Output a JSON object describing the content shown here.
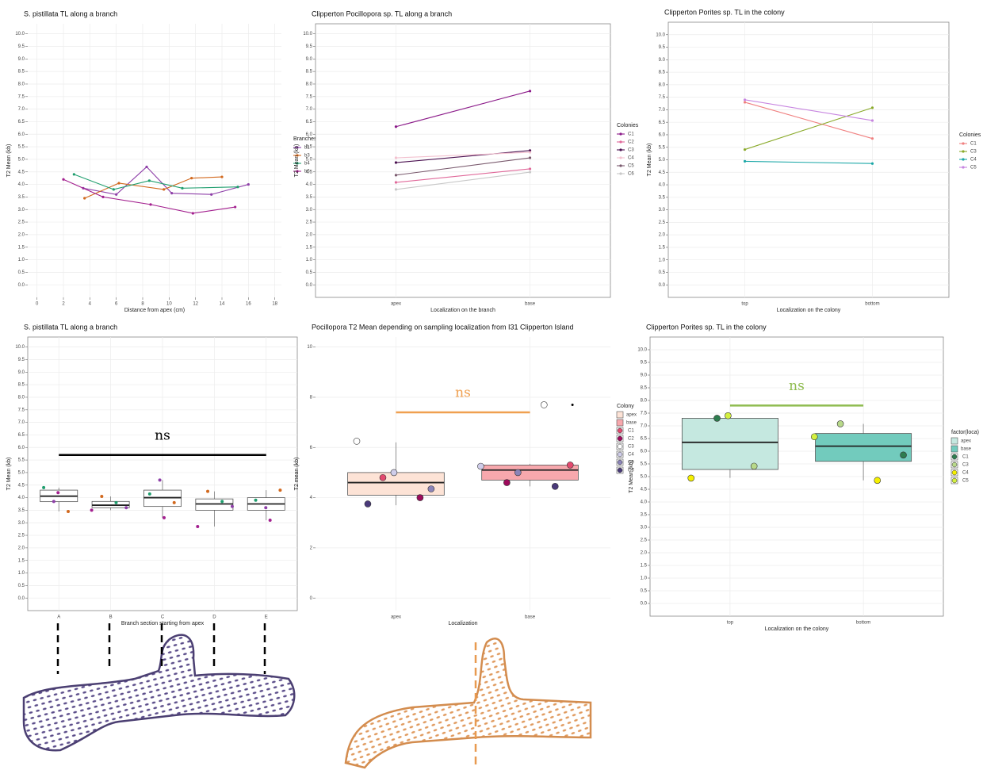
{
  "chart_data": [
    {
      "type": "line",
      "title": "S. pistillata TL along a branch",
      "x_label": "Distance from apex (cm)",
      "y_label": "T2 Mean (kb)",
      "legend_title": "Branches",
      "xlim": [
        -0.7,
        18.5
      ],
      "xticks": [
        0,
        2,
        4,
        6,
        8,
        10,
        12,
        14,
        16,
        18
      ],
      "ylim": [
        -0.5,
        10.4
      ],
      "yticks": [
        {
          "value": 0,
          "label": "0.0"
        },
        0.5,
        {
          "value": 1,
          "label": "1.0"
        },
        1.5,
        {
          "value": 2,
          "label": "2.0"
        },
        2.5,
        {
          "value": 3,
          "label": "3.0"
        },
        3.5,
        {
          "value": 4,
          "label": "4.0"
        },
        4.5,
        {
          "value": 5,
          "label": "5.0"
        },
        5.5,
        {
          "value": 6,
          "label": "6.0"
        },
        6.5,
        {
          "value": 7,
          "label": "7.0"
        },
        7.5,
        {
          "value": 8,
          "label": "8.0"
        },
        8.5,
        {
          "value": 9,
          "label": "9.0"
        },
        9.5,
        {
          "value": 10,
          "label": "10.0"
        }
      ],
      "grid": true,
      "series": [
        {
          "name": "b1",
          "color": "#8e3fa8",
          "x": [
            3.5,
            6,
            8.3,
            10.2,
            13.2,
            16
          ],
          "values": [
            3.85,
            3.6,
            4.7,
            3.65,
            3.6,
            4.0
          ]
        },
        {
          "name": "b3",
          "color": "#d2691e",
          "x": [
            3.6,
            6.2,
            9.6,
            11.7,
            14
          ],
          "values": [
            3.45,
            4.05,
            3.8,
            4.25,
            4.3
          ]
        },
        {
          "name": "b4",
          "color": "#1f9e6e",
          "x": [
            2.8,
            5.8,
            8.5,
            11,
            15.2
          ],
          "values": [
            4.4,
            3.8,
            4.15,
            3.85,
            3.9
          ]
        },
        {
          "name": "b6",
          "color": "#a3208f",
          "x": [
            2,
            5,
            8.6,
            11.8,
            15
          ],
          "values": [
            4.2,
            3.5,
            3.2,
            2.85,
            3.1
          ]
        }
      ]
    },
    {
      "type": "line",
      "title": "Clipperton Pocillopora sp. TL along a branch",
      "x_label": "Localization on the branch",
      "y_label": "T2 Mean (kb)",
      "legend_title": "Colonies",
      "categories": [
        "apex",
        "base"
      ],
      "ylim": [
        -0.5,
        10.4
      ],
      "yticks": [
        {
          "value": 0,
          "label": "0.0"
        },
        0.5,
        {
          "value": 1,
          "label": "1.0"
        },
        1.5,
        {
          "value": 2,
          "label": "2.0"
        },
        2.5,
        {
          "value": 3,
          "label": "3.0"
        },
        3.5,
        {
          "value": 4,
          "label": "4.0"
        },
        4.5,
        {
          "value": 5,
          "label": "5.0"
        },
        5.5,
        {
          "value": 6,
          "label": "6.0"
        },
        6.5,
        {
          "value": 7,
          "label": "7.0"
        },
        7.5,
        {
          "value": 8,
          "label": "8.0"
        },
        8.5,
        {
          "value": 9,
          "label": "9.0"
        },
        9.5,
        {
          "value": 10,
          "label": "10.0"
        }
      ],
      "grid": true,
      "series": [
        {
          "name": "C1",
          "color": "#8b1a89",
          "values": [
            6.3,
            7.72
          ]
        },
        {
          "name": "C2",
          "color": "#e0699a",
          "values": [
            4.08,
            4.62
          ]
        },
        {
          "name": "C3",
          "color": "#4a1050",
          "values": [
            4.87,
            5.35
          ]
        },
        {
          "name": "C4",
          "color": "#f3c1cf",
          "values": [
            5.06,
            5.28
          ]
        },
        {
          "name": "C5",
          "color": "#7a5a6e",
          "values": [
            4.37,
            5.06
          ]
        },
        {
          "name": "C6",
          "color": "#c8c8c8",
          "values": [
            3.8,
            4.49
          ]
        }
      ]
    },
    {
      "type": "line",
      "title": "Clipperton Porites sp. TL in the colony",
      "x_label": "Localization on the colony",
      "y_label": "T2 Mean (kb)",
      "legend_title": "Colonies",
      "categories": [
        "top",
        "bottom"
      ],
      "ylim": [
        -0.5,
        10.5
      ],
      "yticks": [
        {
          "value": 0,
          "label": "0.0"
        },
        0.5,
        {
          "value": 1,
          "label": "1.0"
        },
        1.5,
        {
          "value": 2,
          "label": "2.0"
        },
        2.5,
        {
          "value": 3,
          "label": "3.0"
        },
        3.5,
        {
          "value": 4,
          "label": "4.0"
        },
        4.5,
        {
          "value": 5,
          "label": "5.0"
        },
        5.5,
        {
          "value": 6,
          "label": "6.0"
        },
        6.5,
        {
          "value": 7,
          "label": "7.0"
        },
        7.5,
        {
          "value": 8,
          "label": "8.0"
        },
        8.5,
        {
          "value": 9,
          "label": "9.0"
        },
        9.5,
        {
          "value": 10,
          "label": "10.0"
        }
      ],
      "grid": true,
      "series": [
        {
          "name": "C1",
          "color": "#f08080",
          "values": [
            7.3,
            5.85
          ]
        },
        {
          "name": "C3",
          "color": "#8aaa2a",
          "values": [
            5.41,
            7.08
          ]
        },
        {
          "name": "C4",
          "color": "#1aa7a7",
          "values": [
            4.94,
            4.85
          ]
        },
        {
          "name": "C5",
          "color": "#c785e0",
          "values": [
            7.4,
            6.57
          ]
        }
      ]
    },
    {
      "type": "box",
      "title": "S. pistillata TL along a branch",
      "x_label": "Branch section starting from apex",
      "y_label": "T2 Mean (kb)",
      "categories": [
        "A",
        "B",
        "C",
        "D",
        "E"
      ],
      "ylim": [
        -0.5,
        10.4
      ],
      "yticks": [
        {
          "value": 0,
          "label": "0.0"
        },
        0.5,
        {
          "value": 1,
          "label": "1.0"
        },
        1.5,
        {
          "value": 2,
          "label": "2.0"
        },
        2.5,
        {
          "value": 3,
          "label": "3.0"
        },
        3.5,
        {
          "value": 4,
          "label": "4.0"
        },
        4.5,
        {
          "value": 5,
          "label": "5.0"
        },
        5.5,
        {
          "value": 6,
          "label": "6.0"
        },
        6.5,
        {
          "value": 7,
          "label": "7.0"
        },
        7.5,
        {
          "value": 8,
          "label": "8.0"
        },
        8.5,
        {
          "value": 9,
          "label": "9.0"
        },
        9.5,
        {
          "value": 10,
          "label": "10.0"
        }
      ],
      "grid": true,
      "boxes": [
        {
          "color": "#ffffff",
          "low": 3.45,
          "q1": 3.84,
          "median": 4.06,
          "q3": 4.3,
          "high": 4.4
        },
        {
          "color": "#ffffff",
          "low": 3.5,
          "q1": 3.6,
          "median": 3.7,
          "q3": 3.85,
          "high": 4.05
        },
        {
          "color": "#ffffff",
          "low": 3.2,
          "q1": 3.65,
          "median": 4.0,
          "q3": 4.3,
          "high": 4.7
        },
        {
          "color": "#ffffff",
          "low": 2.85,
          "q1": 3.5,
          "median": 3.75,
          "q3": 3.95,
          "high": 4.25
        },
        {
          "color": "#ffffff",
          "low": 3.1,
          "q1": 3.5,
          "median": 3.75,
          "q3": 4.0,
          "high": 4.3
        }
      ],
      "series": [
        {
          "color": "#8e3fa8",
          "values": [
            3.85,
            3.6,
            4.7,
            3.65,
            3.6
          ]
        },
        {
          "color": "#d2691e",
          "values": [
            3.45,
            4.05,
            3.8,
            4.25,
            4.3
          ]
        },
        {
          "color": "#1f9e6e",
          "values": [
            4.4,
            3.8,
            4.15,
            3.85,
            3.9
          ]
        },
        {
          "color": "#a3208f",
          "values": [
            4.2,
            3.5,
            3.2,
            2.85,
            3.1
          ]
        }
      ],
      "annotation": {
        "text": "ns",
        "y": 5.7,
        "color": "#000000"
      }
    },
    {
      "type": "box",
      "title": "Pocillopora T2 Mean depending on sampling localization from I31 Clipperton Island",
      "x_label": "Localization",
      "y_label": "T2 mean (kb)",
      "legend_title": "Colony",
      "categories": [
        "apex",
        "base"
      ],
      "ylim": [
        -0.5,
        10.4
      ],
      "yticks": [
        0,
        2,
        4,
        6,
        8,
        10
      ],
      "grid": true,
      "boxes": [
        {
          "name": "apex",
          "color": "#fde3d6",
          "low": 3.7,
          "q1": 4.1,
          "median": 4.6,
          "q3": 5.0,
          "high": 6.2
        },
        {
          "name": "base",
          "color": "#f7a8ad",
          "low": 4.45,
          "q1": 4.7,
          "median": 5.1,
          "q3": 5.3,
          "high": 5.35,
          "outliers": [
            7.7
          ]
        }
      ],
      "series": [
        {
          "name": "C1",
          "color": "#e34a6f",
          "values": [
            4.8,
            5.3
          ]
        },
        {
          "name": "C2",
          "color": "#9d0b5c",
          "values": [
            4.0,
            4.6
          ]
        },
        {
          "name": "C3",
          "color": "#ffffff",
          "values": [
            6.25,
            7.7
          ]
        },
        {
          "name": "C4",
          "color": "#cfcdea",
          "values": [
            5.0,
            5.25
          ]
        },
        {
          "name": "C5",
          "color": "#8b84b8",
          "values": [
            4.35,
            5.0
          ]
        },
        {
          "name": "C6",
          "color": "#4a3a7a",
          "values": [
            3.75,
            4.45
          ]
        }
      ],
      "annotation": {
        "text": "ns",
        "y": 7.4,
        "color": "#f0a050"
      }
    },
    {
      "type": "box",
      "title": "Clipperton Porites sp. TL in the colony",
      "x_label": "Localization on the colony",
      "y_label": "T2 Mean (kb)",
      "legend_title": "factor(loca)",
      "categories": [
        "top",
        "bottom"
      ],
      "ylim": [
        -0.5,
        10.5
      ],
      "yticks": [
        {
          "value": 0,
          "label": "0.0"
        },
        0.5,
        {
          "value": 1,
          "label": "1.0"
        },
        1.5,
        {
          "value": 2,
          "label": "2.0"
        },
        2.5,
        {
          "value": 3,
          "label": "3.0"
        },
        3.5,
        {
          "value": 4,
          "label": "4.0"
        },
        4.5,
        {
          "value": 5,
          "label": "5.0"
        },
        5.5,
        {
          "value": 6,
          "label": "6.0"
        },
        6.5,
        {
          "value": 7,
          "label": "7.0"
        },
        7.5,
        {
          "value": 8,
          "label": "8.0"
        },
        8.5,
        {
          "value": 9,
          "label": "9.0"
        },
        9.5,
        {
          "value": 10,
          "label": "10.0"
        }
      ],
      "grid": true,
      "boxes": [
        {
          "name": "apex",
          "color": "#c5e8e0",
          "low": 4.95,
          "q1": 5.28,
          "median": 6.35,
          "q3": 7.3,
          "high": 7.4
        },
        {
          "name": "base",
          "color": "#72cbbd",
          "low": 4.85,
          "q1": 5.6,
          "median": 6.2,
          "q3": 6.7,
          "high": 7.08
        }
      ],
      "series": [
        {
          "name": "C1",
          "color": "#2e7d4f",
          "values": [
            7.3,
            5.85
          ]
        },
        {
          "name": "C3",
          "color": "#b8d98a",
          "values": [
            5.41,
            7.08
          ]
        },
        {
          "name": "C4",
          "color": "#f5f000",
          "values": [
            4.94,
            4.85
          ]
        },
        {
          "name": "C5",
          "color": "#d4f040",
          "values": [
            7.4,
            6.57
          ]
        }
      ],
      "annotation": {
        "text": "ns",
        "y": 7.8,
        "color": "#8fbc50"
      }
    }
  ]
}
